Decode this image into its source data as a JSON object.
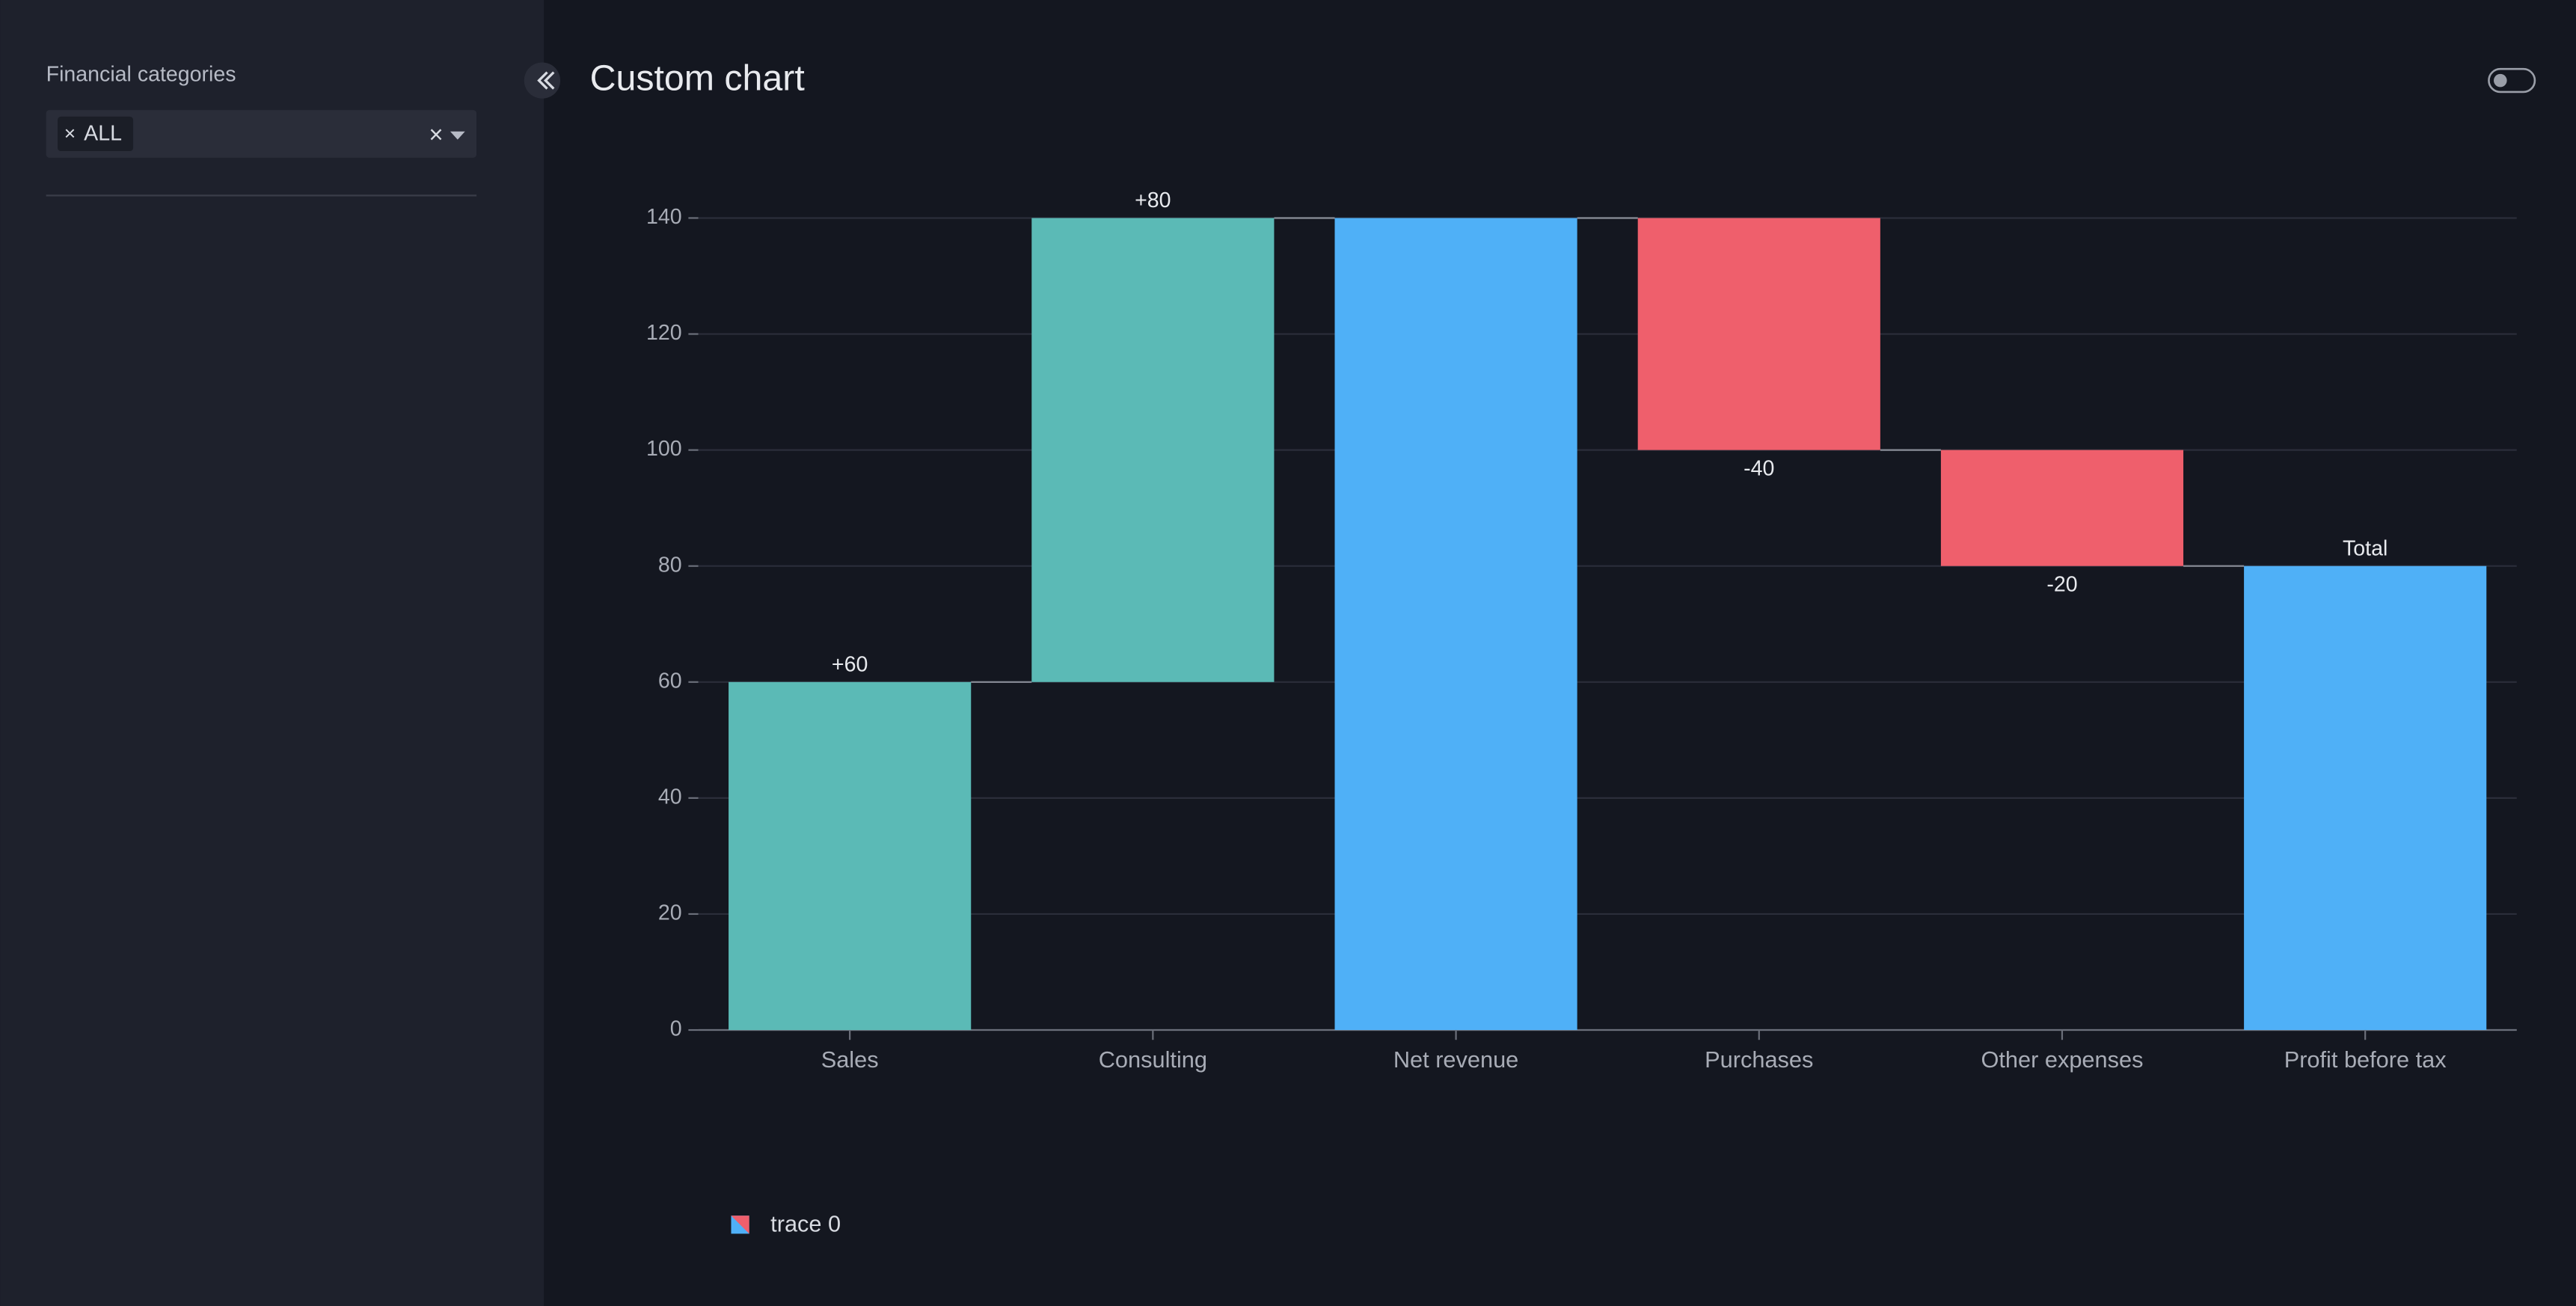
{
  "sidebar": {
    "filter_label": "Financial categories",
    "selected": [
      "ALL"
    ]
  },
  "chart_data": {
    "type": "waterfall",
    "title": "Custom chart",
    "categories": [
      "Sales",
      "Consulting",
      "Net revenue",
      "Purchases",
      "Other expenses",
      "Profit before tax"
    ],
    "series": [
      {
        "name": "trace 0",
        "values": [
          60,
          80,
          140,
          -40,
          -20,
          80
        ],
        "measure": [
          "relative",
          "relative",
          "total",
          "relative",
          "relative",
          "total"
        ],
        "value_labels": [
          "+60",
          "+80",
          null,
          "-40",
          "-20",
          null
        ]
      }
    ],
    "total_label": "Total",
    "colors": {
      "increasing": "#5bbab6",
      "decreasing": "#ef5f6c",
      "totals": "#4fb0f7"
    },
    "ylim": [
      0,
      147
    ],
    "yticks": [
      0,
      20,
      40,
      60,
      80,
      100,
      120,
      140
    ],
    "grid": true
  }
}
